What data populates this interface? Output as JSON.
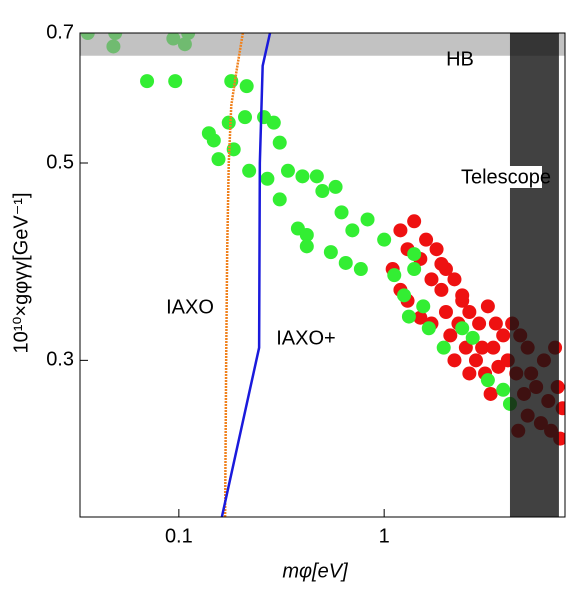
{
  "chart_data": {
    "type": "scatter",
    "x_label": "mφ[eV]",
    "y_label": "10¹⁰×gφγγ[GeV⁻¹]",
    "xscale": "log",
    "yscale": "log",
    "xlim": [
      0.033,
      7.6
    ],
    "ylim": [
      0.2,
      0.7
    ],
    "xticks": [
      0.1,
      1
    ],
    "yticks": [
      0.3,
      0.5,
      0.7
    ],
    "regions": [
      {
        "name": "HB",
        "color": "#999999",
        "x": [
          0.033,
          7.6
        ],
        "y": [
          0.66,
          0.7
        ]
      },
      {
        "name": "Telescope",
        "color": "#111111",
        "x": [
          4.1,
          7.1
        ],
        "y": [
          0.2,
          0.7
        ]
      }
    ],
    "curves": [
      {
        "name": "IAXO",
        "color": "#f0821e",
        "x": [
          0.205,
          0.19,
          0.18,
          0.175,
          0.172,
          0.17,
          0.168
        ],
        "y": [
          0.7,
          0.63,
          0.58,
          0.5,
          0.4,
          0.3,
          0.2
        ]
      },
      {
        "name": "IAXO+",
        "color": "#1a1adc",
        "x": [
          0.278,
          0.256,
          0.248,
          0.246,
          0.162
        ],
        "y": [
          0.7,
          0.643,
          0.5,
          0.31,
          0.2
        ]
      }
    ],
    "series": [
      {
        "color": "#ee1111",
        "x": [
          1.2,
          1.4,
          1.6,
          1.3,
          1.5,
          1.8,
          2.0,
          1.7,
          1.9,
          2.2,
          2.4,
          1.1,
          1.2,
          1.3,
          1.5,
          1.7,
          2.0,
          2.3,
          2.6,
          2.9,
          3.2,
          3.5,
          2.1,
          2.5,
          2.8,
          3.0,
          3.4,
          3.8,
          4.2,
          4.6,
          5.0,
          2.2,
          2.6,
          3.1,
          3.6,
          4.0,
          4.4,
          5.2,
          6.0,
          6.8,
          4.8,
          5.5,
          6.3,
          7.0,
          7.4,
          5.0,
          5.8,
          6.5,
          7.2,
          4.5,
          3.3,
          2.4,
          1.9
        ],
        "values": [
          0.42,
          0.43,
          0.41,
          0.4,
          0.39,
          0.4,
          0.38,
          0.37,
          0.36,
          0.37,
          0.35,
          0.38,
          0.36,
          0.35,
          0.335,
          0.33,
          0.34,
          0.33,
          0.34,
          0.33,
          0.345,
          0.33,
          0.32,
          0.31,
          0.3,
          0.31,
          0.31,
          0.32,
          0.33,
          0.32,
          0.31,
          0.3,
          0.29,
          0.29,
          0.295,
          0.3,
          0.29,
          0.29,
          0.3,
          0.31,
          0.275,
          0.28,
          0.27,
          0.28,
          0.265,
          0.26,
          0.255,
          0.25,
          0.245,
          0.25,
          0.275,
          0.355,
          0.385
        ]
      },
      {
        "color": "#33ee33",
        "x": [
          0.036,
          0.049,
          0.048,
          0.094,
          0.107,
          0.111,
          0.07,
          0.096,
          0.18,
          0.214,
          0.14,
          0.148,
          0.156,
          0.175,
          0.185,
          0.21,
          0.26,
          0.29,
          0.31,
          0.27,
          0.31,
          0.34,
          0.4,
          0.47,
          0.5,
          0.58,
          0.38,
          0.42,
          0.42,
          0.62,
          0.7,
          0.83,
          0.55,
          0.65,
          0.77,
          1.0,
          1.12,
          1.25,
          1.4,
          1.55,
          1.32,
          1.65,
          1.95,
          2.4,
          2.7,
          3.2,
          3.8,
          4.1,
          1.4,
          0.22
        ],
        "values": [
          0.7,
          0.7,
          0.676,
          0.69,
          0.68,
          0.7,
          0.618,
          0.618,
          0.618,
          0.61,
          0.54,
          0.53,
          0.505,
          0.555,
          0.518,
          0.563,
          0.563,
          0.555,
          0.527,
          0.48,
          0.455,
          0.49,
          0.483,
          0.483,
          0.465,
          0.47,
          0.422,
          0.415,
          0.403,
          0.44,
          0.42,
          0.432,
          0.397,
          0.386,
          0.38,
          0.41,
          0.374,
          0.355,
          0.38,
          0.345,
          0.336,
          0.326,
          0.31,
          0.326,
          0.318,
          0.285,
          0.278,
          0.268,
          0.395,
          0.49
        ]
      }
    ]
  }
}
